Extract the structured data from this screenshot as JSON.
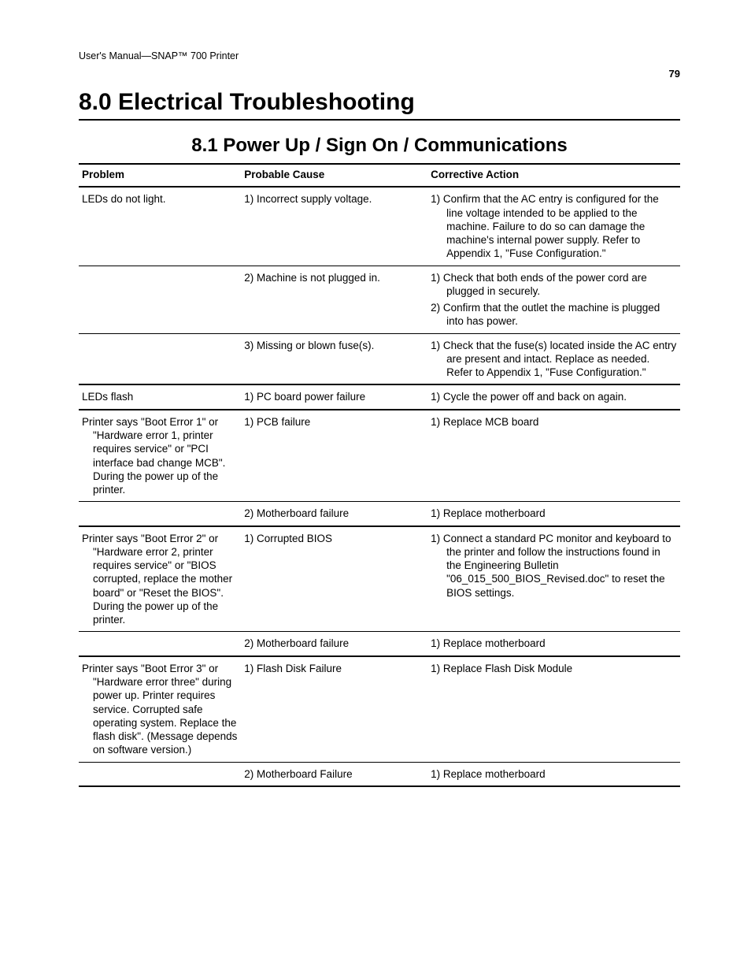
{
  "header": "User's Manual—SNAP™ 700 Printer",
  "page_number": "79",
  "chapter_title": "8.0 Electrical Troubleshooting",
  "section_title": "8.1 Power Up / Sign On / Communications",
  "columns": {
    "problem": "Problem",
    "cause": "Probable Cause",
    "action": "Corrective Action"
  },
  "rows": [
    {
      "problem": "LEDs do not light.",
      "cause": "1) Incorrect supply voltage.",
      "actions": [
        "1) Confirm that the AC entry is configured for the line voltage intended to be applied to the machine.  Failure to do so can damage the machine's internal power supply.  Refer to Appendix 1, \"Fuse Configuration.\""
      ],
      "section_end": false
    },
    {
      "problem": "",
      "cause": "2) Machine is not plugged in.",
      "actions": [
        "1) Check that both ends of the power cord are plugged in securely.",
        "2) Confirm that the outlet the machine is plugged into has power."
      ],
      "section_end": false
    },
    {
      "problem": "",
      "cause": "3) Missing or blown fuse(s).",
      "actions": [
        "1) Check that the fuse(s) located inside the AC entry are present and intact.  Replace as needed.  Refer to Appendix 1, \"Fuse Configuration.\""
      ],
      "section_end": true
    },
    {
      "problem": "LEDs flash",
      "cause": "1) PC board power failure",
      "actions": [
        "1) Cycle the power off and back on again."
      ],
      "section_end": true
    },
    {
      "problem": "Printer says \"Boot Error 1\" or \"Hardware error 1, printer requires service\" or \"PCI interface bad change MCB\".  During the power up of the printer.",
      "cause": "1) PCB failure",
      "actions": [
        "1) Replace MCB board"
      ],
      "section_end": false
    },
    {
      "problem": "",
      "cause": "2) Motherboard failure",
      "actions": [
        "1) Replace motherboard"
      ],
      "section_end": true
    },
    {
      "problem": "Printer says \"Boot Error 2\" or \"Hardware error 2, printer requires service\" or \"BIOS corrupted, replace the mother board\" or \"Reset the BIOS\". During the power up of the printer.",
      "cause": "1) Corrupted BIOS",
      "actions": [
        "1) Connect a standard PC monitor and keyboard to the printer and follow the instructions found in the Engineering Bulletin \"06_015_500_BIOS_Revised.doc\" to reset the BIOS settings."
      ],
      "section_end": false
    },
    {
      "problem": "",
      "cause": "2) Motherboard failure",
      "actions": [
        "1) Replace motherboard"
      ],
      "section_end": true
    },
    {
      "problem": "Printer says \"Boot Error 3\" or \"Hardware error three\" during power up. Printer requires service. Corrupted safe operating system. Replace the flash disk\". (Message depends on software version.)",
      "cause": "1) Flash Disk Failure",
      "actions": [
        "1) Replace Flash Disk Module"
      ],
      "section_end": false
    },
    {
      "problem": "",
      "cause": "2) Motherboard Failure",
      "actions": [
        "1) Replace motherboard"
      ],
      "section_end": true
    }
  ]
}
